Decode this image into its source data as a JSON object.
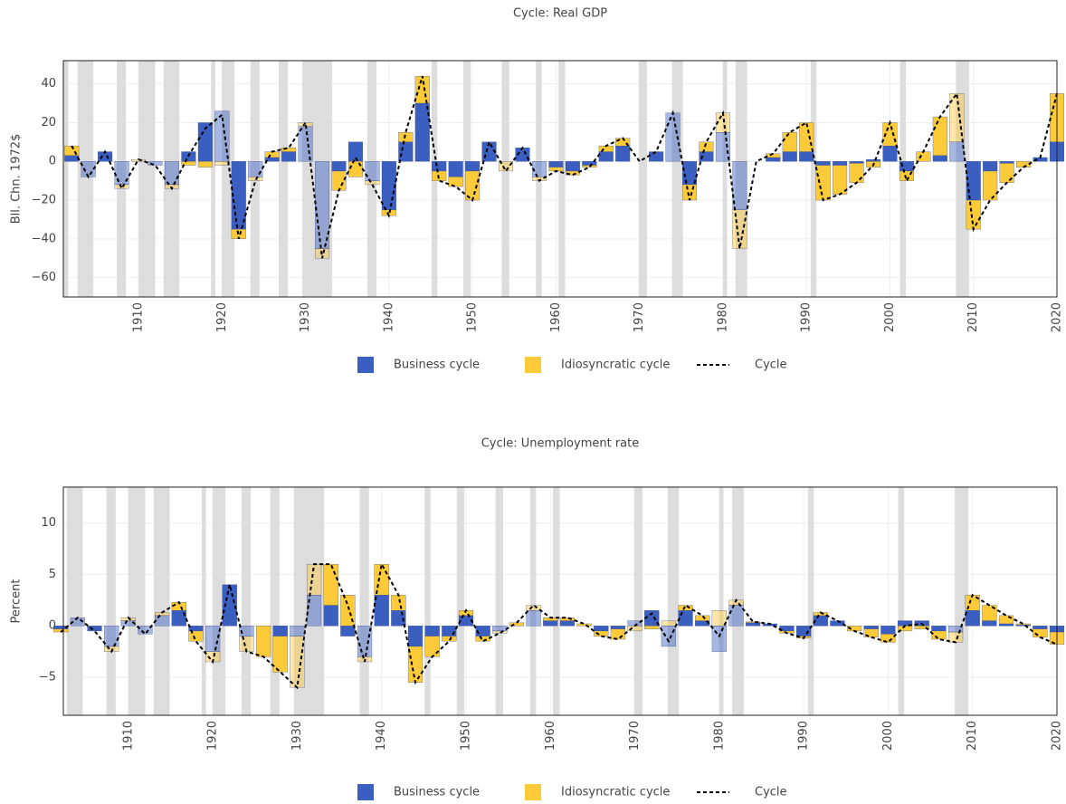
{
  "chart_data": [
    {
      "type": "bar",
      "title": "Cycle: Real GDP",
      "y_label": "Bll. Chn. 1972$",
      "x": [
        1902,
        1904,
        1906,
        1908,
        1910,
        1912,
        1914,
        1916,
        1918,
        1920,
        1922,
        1924,
        1926,
        1928,
        1930,
        1932,
        1934,
        1936,
        1938,
        1940,
        1942,
        1944,
        1946,
        1948,
        1950,
        1952,
        1954,
        1956,
        1958,
        1960,
        1962,
        1964,
        1966,
        1968,
        1970,
        1972,
        1974,
        1976,
        1978,
        1980,
        1982,
        1984,
        1986,
        1988,
        1990,
        1992,
        1994,
        1996,
        1998,
        2000,
        2002,
        2004,
        2006,
        2008,
        2010,
        2012,
        2014,
        2016,
        2018,
        2020
      ],
      "series": [
        {
          "name": "Business cycle",
          "type": "bar",
          "color": "#3b5fc0",
          "values": [
            3,
            -8,
            5,
            -12,
            0,
            -2,
            -12,
            5,
            20,
            26,
            -35,
            -8,
            2,
            5,
            18,
            -45,
            -5,
            10,
            -10,
            -25,
            10,
            30,
            -5,
            -8,
            -5,
            10,
            0,
            7,
            -8,
            -3,
            -5,
            -2,
            5,
            8,
            0,
            5,
            25,
            -12,
            5,
            15,
            -25,
            0,
            2,
            5,
            5,
            -2,
            -2,
            -1,
            1,
            8,
            -5,
            0,
            3,
            10,
            -20,
            -5,
            -1,
            0,
            2,
            10
          ]
        },
        {
          "name": "Idiosyncratic cycle",
          "type": "bar",
          "color": "#fdca3a",
          "values": [
            5,
            0,
            0,
            -2,
            1,
            0,
            -2,
            -2,
            -3,
            -2,
            -5,
            -2,
            3,
            2,
            2,
            -5,
            -10,
            -8,
            -2,
            -3,
            5,
            14,
            -5,
            -5,
            -15,
            0,
            -5,
            0,
            -2,
            -2,
            -2,
            -1,
            3,
            4,
            0,
            0,
            0,
            -8,
            5,
            10,
            -20,
            0,
            2,
            10,
            15,
            -18,
            -15,
            -10,
            -3,
            12,
            -5,
            5,
            20,
            25,
            -15,
            -15,
            -10,
            -3,
            0,
            25
          ]
        },
        {
          "name": "Cycle",
          "type": "line",
          "color": "#000000",
          "values": [
            8,
            -8,
            5,
            -14,
            1,
            -2,
            -14,
            3,
            17,
            24,
            -40,
            -10,
            5,
            7,
            20,
            -50,
            -15,
            2,
            -12,
            -28,
            15,
            44,
            -10,
            -13,
            -20,
            10,
            -5,
            7,
            -10,
            -5,
            -7,
            -3,
            8,
            12,
            0,
            5,
            25,
            -20,
            10,
            25,
            -45,
            0,
            4,
            15,
            20,
            -20,
            -17,
            -11,
            -2,
            20,
            -10,
            5,
            23,
            35,
            -35,
            -20,
            -11,
            -3,
            2,
            35
          ]
        }
      ],
      "xlim": [
        1901,
        2020
      ],
      "xticks": [
        1910,
        1920,
        1930,
        1940,
        1950,
        1960,
        1970,
        1980,
        1990,
        2000,
        2010,
        2020
      ],
      "ylim": [
        -70,
        52
      ],
      "yticks": [
        {
          "value": -60,
          "label": "−60"
        },
        {
          "value": -40,
          "label": "−40"
        },
        {
          "value": -20,
          "label": "−20"
        },
        0,
        20,
        40
      ],
      "recessions": [
        [
          1901,
          1901.6
        ],
        [
          1902.7,
          1904.6
        ],
        [
          1907.4,
          1908.5
        ],
        [
          1910,
          1912
        ],
        [
          1913,
          1914.9
        ],
        [
          1918.7,
          1919.2
        ],
        [
          1920,
          1921.5
        ],
        [
          1923.4,
          1924.5
        ],
        [
          1926.8,
          1927.9
        ],
        [
          1929.6,
          1933.2
        ],
        [
          1937.4,
          1938.5
        ],
        [
          1945.1,
          1945.8
        ],
        [
          1948.9,
          1949.8
        ],
        [
          1953.5,
          1954.4
        ],
        [
          1957.6,
          1958.3
        ],
        [
          1960.3,
          1961.1
        ],
        [
          1969.9,
          1970.9
        ],
        [
          1973.9,
          1975.2
        ],
        [
          1980,
          1980.5
        ],
        [
          1981.5,
          1982.9
        ],
        [
          1990.5,
          1991.2
        ],
        [
          2001.2,
          2001.9
        ],
        [
          2007.9,
          2009.5
        ]
      ],
      "grid": true
    },
    {
      "type": "bar",
      "title": "Cycle: Unemployment rate",
      "y_label": "Percent",
      "x": [
        1902,
        1904,
        1906,
        1908,
        1910,
        1912,
        1914,
        1916,
        1918,
        1920,
        1922,
        1924,
        1926,
        1928,
        1930,
        1932,
        1934,
        1936,
        1938,
        1940,
        1942,
        1944,
        1946,
        1948,
        1950,
        1952,
        1954,
        1956,
        1958,
        1960,
        1962,
        1964,
        1966,
        1968,
        1970,
        1972,
        1974,
        1976,
        1978,
        1980,
        1982,
        1984,
        1986,
        1988,
        1990,
        1992,
        1994,
        1996,
        1998,
        2000,
        2002,
        2004,
        2006,
        2008,
        2010,
        2012,
        2014,
        2016,
        2018,
        2020
      ],
      "series": [
        {
          "name": "Business cycle",
          "type": "bar",
          "color": "#3b5fc0",
          "values": [
            -0.3,
            0.8,
            -0.5,
            -2,
            0.5,
            -0.8,
            1,
            1.5,
            -0.5,
            -2.5,
            4,
            -1,
            0,
            -1,
            -1,
            3,
            2,
            -1,
            -3,
            3,
            1.5,
            -2,
            -1,
            -1,
            1,
            -1,
            -0.5,
            0,
            1.5,
            0.5,
            0.5,
            0,
            -0.5,
            -0.3,
            0.5,
            1.5,
            -2,
            1.5,
            0.5,
            -2.5,
            2,
            0.3,
            0.2,
            -0.5,
            -1,
            1,
            0.5,
            0,
            -0.3,
            -0.8,
            0.5,
            0.5,
            -0.5,
            -0.6,
            1.5,
            0.5,
            0.2,
            0.1,
            -0.3,
            -0.6
          ]
        },
        {
          "name": "Idiosyncratic cycle",
          "type": "bar",
          "color": "#fdca3a",
          "values": [
            -0.3,
            0,
            0,
            -0.5,
            0.3,
            0,
            0.3,
            0.8,
            -1,
            -1,
            0,
            -1.5,
            -3,
            -3.5,
            -5,
            3,
            4,
            3,
            -0.5,
            3,
            1.5,
            -3.5,
            -2,
            -0.5,
            0.5,
            -0.5,
            -0.2,
            0.3,
            0.5,
            0.3,
            0.3,
            0.2,
            -0.5,
            -1,
            -0.5,
            -0.3,
            0.5,
            0.5,
            0.5,
            1.5,
            0.5,
            0.1,
            0,
            -0.2,
            -0.2,
            0.3,
            0,
            -0.5,
            -0.8,
            -0.8,
            -0.5,
            -0.3,
            -0.8,
            -1,
            1.5,
            1.5,
            0.8,
            0.1,
            -0.8,
            -1.2
          ]
        },
        {
          "name": "Cycle",
          "type": "line",
          "color": "#000000",
          "values": [
            -0.6,
            0.8,
            -0.5,
            -2.5,
            0.8,
            -0.8,
            1.3,
            2.3,
            -1.5,
            -3.5,
            4,
            -2.5,
            -3,
            -4.5,
            -6,
            6,
            6,
            2,
            -3.5,
            6,
            3,
            -5.5,
            -3,
            -1.5,
            1.5,
            -1.5,
            -0.7,
            0.3,
            2,
            0.8,
            0.8,
            0.2,
            -1,
            -1.3,
            0,
            1.2,
            -1.5,
            2,
            1,
            -1,
            2.5,
            0.4,
            0.2,
            -0.7,
            -1.2,
            1.3,
            0.5,
            -0.5,
            -1.1,
            -1.6,
            0,
            0.2,
            -1.3,
            -1.6,
            3,
            2,
            1,
            0.2,
            -1.1,
            -1.8
          ]
        }
      ],
      "xlim": [
        1902.3,
        2020
      ],
      "xticks": [
        1910,
        1920,
        1930,
        1940,
        1950,
        1960,
        1970,
        1980,
        1990,
        2000,
        2010,
        2020
      ],
      "ylim": [
        -8.7,
        13.5
      ],
      "yticks": [
        {
          "value": -5,
          "label": "−5"
        },
        0,
        5,
        10
      ],
      "recessions": [
        [
          1902.7,
          1904.6
        ],
        [
          1907.4,
          1908.5
        ],
        [
          1910,
          1912
        ],
        [
          1913,
          1914.9
        ],
        [
          1918.7,
          1919.2
        ],
        [
          1920,
          1921.5
        ],
        [
          1923.4,
          1924.5
        ],
        [
          1926.8,
          1927.9
        ],
        [
          1929.6,
          1933.2
        ],
        [
          1937.4,
          1938.5
        ],
        [
          1945.1,
          1945.8
        ],
        [
          1948.9,
          1949.8
        ],
        [
          1953.5,
          1954.4
        ],
        [
          1957.6,
          1958.3
        ],
        [
          1960.3,
          1961.1
        ],
        [
          1969.9,
          1970.9
        ],
        [
          1973.9,
          1975.2
        ],
        [
          1980,
          1980.5
        ],
        [
          1981.5,
          1982.9
        ],
        [
          1990.5,
          1991.2
        ],
        [
          2001.2,
          2001.9
        ],
        [
          2007.9,
          2009.5
        ]
      ],
      "grid": true
    }
  ]
}
